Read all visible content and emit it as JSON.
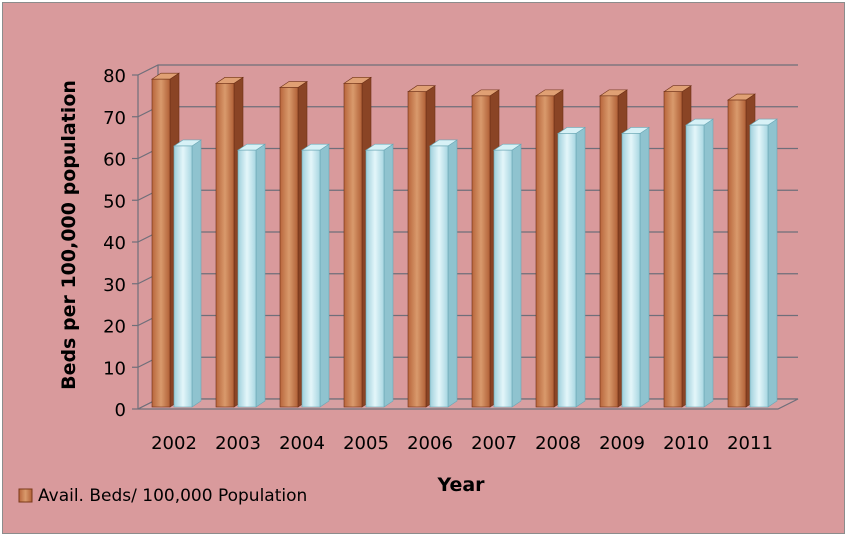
{
  "chart_data": {
    "type": "bar",
    "categories": [
      "2002",
      "2003",
      "2004",
      "2005",
      "2006",
      "2007",
      "2008",
      "2009",
      "2010",
      "2011"
    ],
    "series": [
      {
        "name": "Avail. Beds/ 100,000 Population",
        "values": [
          79,
          78,
          77,
          78,
          76,
          75,
          75,
          75,
          76,
          74
        ],
        "color": "#c8744a"
      },
      {
        "values": [
          63,
          62,
          62,
          62,
          63,
          62,
          66,
          66,
          68,
          68
        ],
        "color": "#b9e1ea"
      }
    ],
    "xlabel": "Year",
    "ylabel": "Beds per 100,000 population",
    "ylim": [
      0,
      80
    ],
    "yticks": [
      0,
      10,
      20,
      30,
      40,
      50,
      60,
      70,
      80
    ],
    "grid": true,
    "legend": "bottom-left",
    "background": "#d99a9c"
  }
}
